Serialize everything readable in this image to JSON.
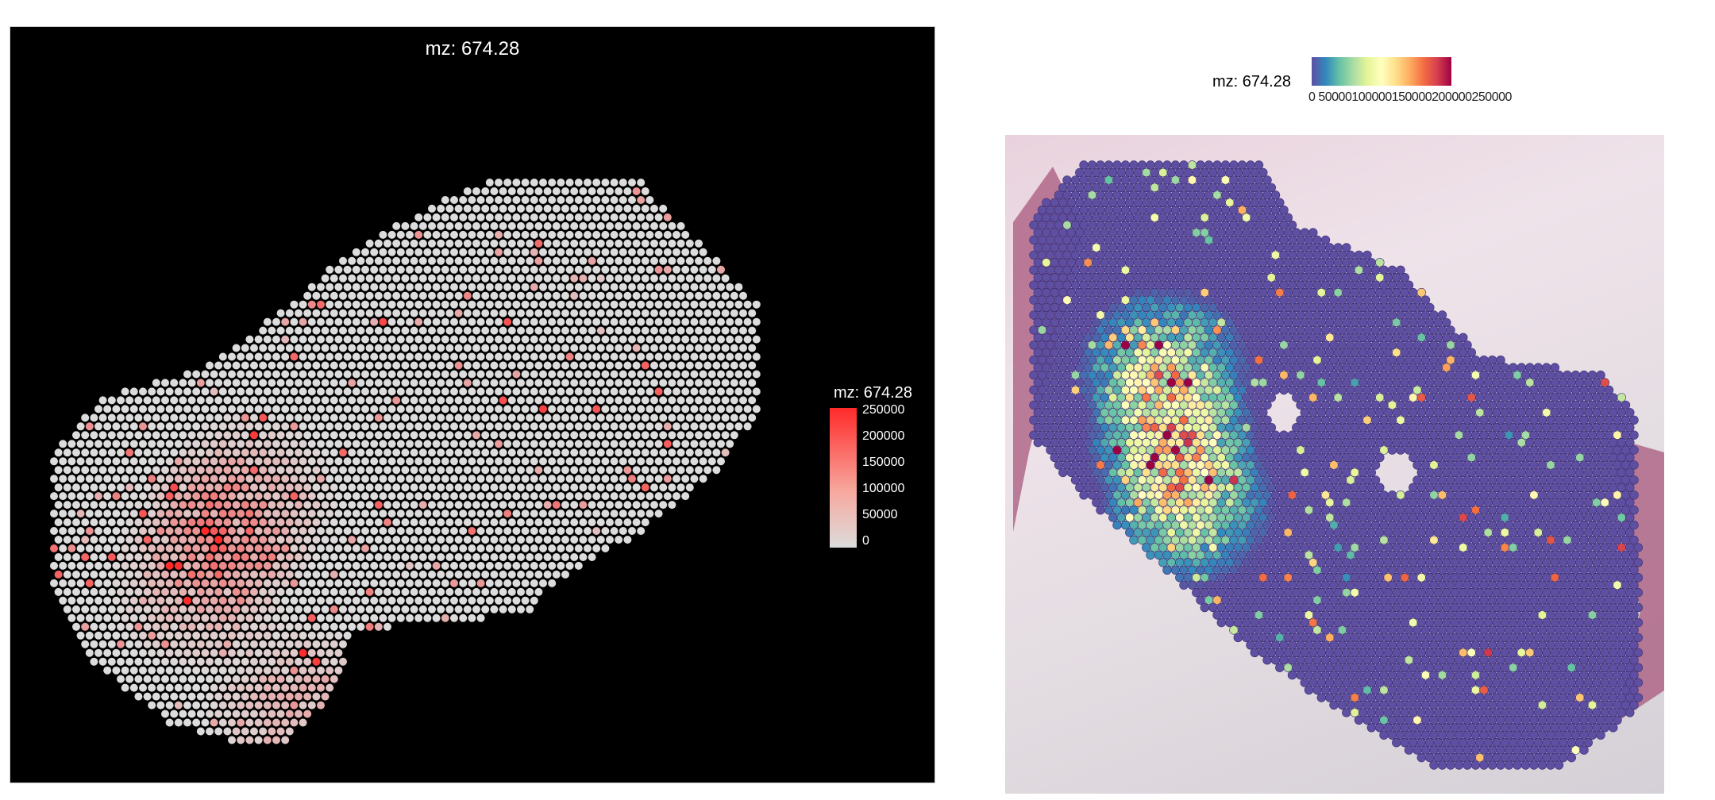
{
  "chart_data": [
    {
      "type": "scatter",
      "title": "mz: 674.28",
      "background": "#000000",
      "legend": {
        "title": "mz: 674.28",
        "ticks": [
          "250000",
          "200000",
          "150000",
          "100000",
          "50000",
          "0"
        ],
        "tick_values": [
          250000,
          200000,
          150000,
          100000,
          50000,
          0
        ],
        "range": [
          0,
          270000
        ],
        "colors": [
          "#dcdcdc",
          "#ff2a2a"
        ],
        "placement": "right"
      },
      "grid": false
    },
    {
      "type": "scatter",
      "title": "mz: 674.28",
      "background_image": "H&E tissue section",
      "legend": {
        "title": "mz: 674.28",
        "tick_text": "0 50000100000150000200000250000",
        "range": [
          0,
          300000
        ],
        "palette": "Spectral (reversed)",
        "placement": "top"
      },
      "grid": false
    }
  ]
}
